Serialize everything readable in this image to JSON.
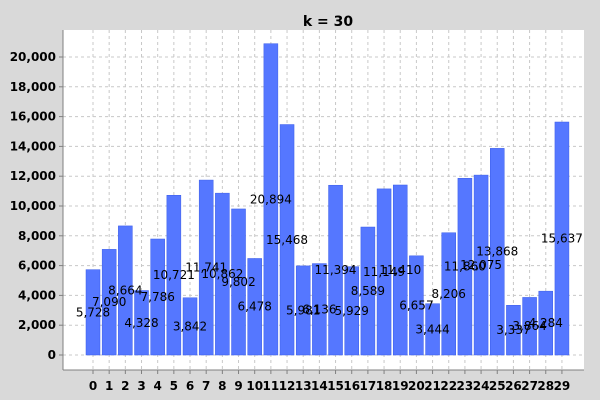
{
  "chart_data": {
    "type": "bar",
    "title": "k = 30",
    "xlabel": "",
    "ylabel": "",
    "categories": [
      "0",
      "1",
      "2",
      "3",
      "4",
      "5",
      "6",
      "7",
      "8",
      "9",
      "10",
      "11",
      "12",
      "13",
      "14",
      "15",
      "16",
      "17",
      "18",
      "19",
      "20",
      "21",
      "22",
      "23",
      "24",
      "25",
      "26",
      "27",
      "28",
      "29"
    ],
    "values": [
      5728,
      7090,
      8664,
      4328,
      7786,
      10721,
      3842,
      11741,
      10862,
      9802,
      6478,
      20894,
      15468,
      5981,
      6136,
      11394,
      5929,
      8589,
      11149,
      11410,
      6657,
      3444,
      8206,
      11860,
      12075,
      13868,
      3337,
      3864,
      4284,
      15637
    ],
    "labels": [
      "5,728",
      "7,090",
      "8,664",
      "4,328",
      "7,786",
      "10,721",
      "3,842",
      "11,741",
      "10,862",
      "9,802",
      "6,478",
      "20,894",
      "15,468",
      "5,981",
      "6,136",
      "11,394",
      "5,929",
      "8,589",
      "11,149",
      "11,410",
      "6,657",
      "3,444",
      "8,206",
      "11,860",
      "12,075",
      "13,868",
      "3,337",
      "3,864",
      "4,284",
      "15,637"
    ],
    "yticks": [
      "0",
      "2,000",
      "4,000",
      "6,000",
      "8,000",
      "10,000",
      "12,000",
      "14,000",
      "16,000",
      "18,000",
      "20,000"
    ],
    "ylim": [
      0,
      21500
    ],
    "grid": true,
    "legend": "none",
    "colors": {
      "bar": "#5577ff",
      "bar_edge": "#3a5ce8",
      "plot_bg": "#ffffff",
      "label_dark": "#000000",
      "label_blue": "#2c4fe0"
    }
  }
}
